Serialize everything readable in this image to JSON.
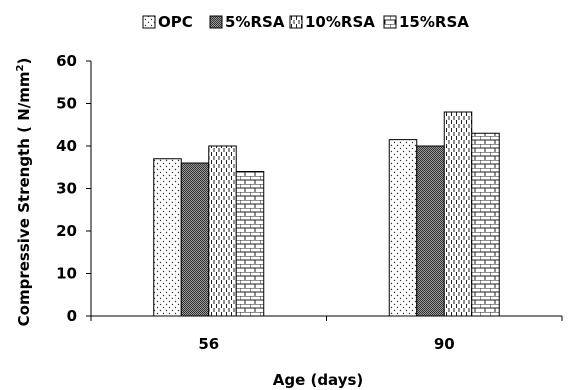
{
  "chart_data": {
    "type": "bar",
    "title": "",
    "xlabel": "Age (days)",
    "ylabel": "Compressive Strength ( N/mm",
    "ylabel_superscript": "2",
    "ylabel_suffix": ")",
    "categories": [
      "56",
      "90"
    ],
    "ylim": [
      0,
      60
    ],
    "yticks": [
      "0",
      "10",
      "20",
      "30",
      "40",
      "50",
      "60"
    ],
    "grid": false,
    "legend_position": "top",
    "series": [
      {
        "name": "OPC",
        "values": [
          37,
          41.5
        ],
        "pattern": "dots"
      },
      {
        "name": "5%RSA",
        "values": [
          36,
          40
        ],
        "pattern": "dense-checker"
      },
      {
        "name": "10%RSA",
        "values": [
          40,
          48
        ],
        "pattern": "dashed-vertical"
      },
      {
        "name": "15%RSA",
        "values": [
          34,
          43
        ],
        "pattern": "brick"
      }
    ]
  }
}
